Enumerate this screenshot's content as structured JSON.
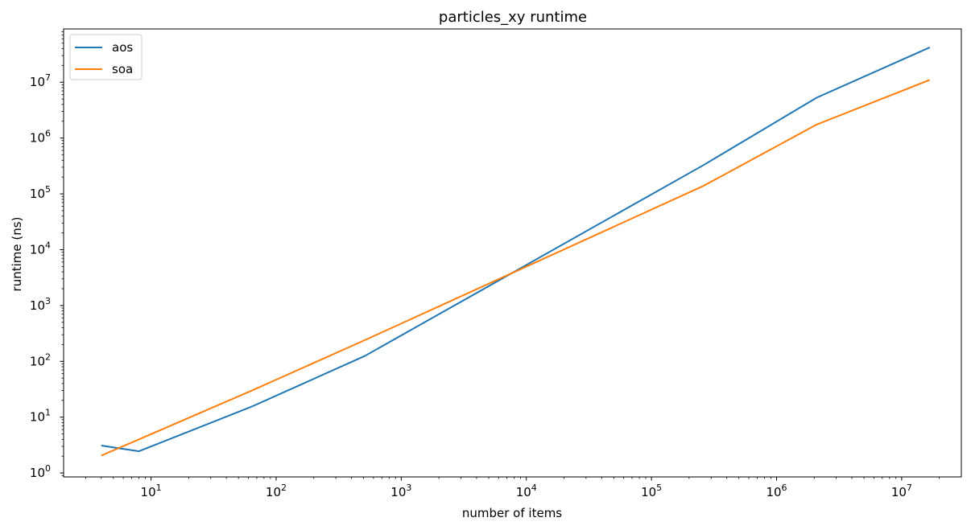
{
  "chart_data": {
    "type": "line",
    "title": "particles_xy runtime",
    "xlabel": "number of items",
    "ylabel": "runtime (ns)",
    "xscale": "log",
    "yscale": "log",
    "xlim": [
      2,
      30000000
    ],
    "ylim": [
      0.85,
      90000000
    ],
    "x_ticks": [
      {
        "base": "10",
        "exp": "1",
        "value": 10
      },
      {
        "base": "10",
        "exp": "2",
        "value": 100
      },
      {
        "base": "10",
        "exp": "3",
        "value": 1000
      },
      {
        "base": "10",
        "exp": "4",
        "value": 10000
      },
      {
        "base": "10",
        "exp": "5",
        "value": 100000
      },
      {
        "base": "10",
        "exp": "6",
        "value": 1000000
      },
      {
        "base": "10",
        "exp": "7",
        "value": 10000000
      }
    ],
    "y_ticks": [
      {
        "base": "10",
        "exp": "0",
        "value": 1
      },
      {
        "base": "10",
        "exp": "1",
        "value": 10
      },
      {
        "base": "10",
        "exp": "2",
        "value": 100
      },
      {
        "base": "10",
        "exp": "3",
        "value": 1000
      },
      {
        "base": "10",
        "exp": "4",
        "value": 10000
      },
      {
        "base": "10",
        "exp": "5",
        "value": 100000
      },
      {
        "base": "10",
        "exp": "6",
        "value": 1000000
      },
      {
        "base": "10",
        "exp": "7",
        "value": 10000000
      }
    ],
    "legend_position": "top-left",
    "grid": false,
    "series": [
      {
        "name": "aos",
        "color": "#1f77b4",
        "x": [
          4,
          8,
          64,
          512,
          262144,
          2097152,
          16777216
        ],
        "y": [
          3.1,
          2.45,
          15.5,
          125,
          330000,
          5300000,
          42000000
        ]
      },
      {
        "name": "soa",
        "color": "#ff7f0e",
        "x": [
          4,
          8,
          64,
          512,
          262144,
          2097152,
          16777216
        ],
        "y": [
          2.05,
          4.0,
          30,
          240,
          140000,
          1750000,
          11000000
        ]
      }
    ]
  }
}
